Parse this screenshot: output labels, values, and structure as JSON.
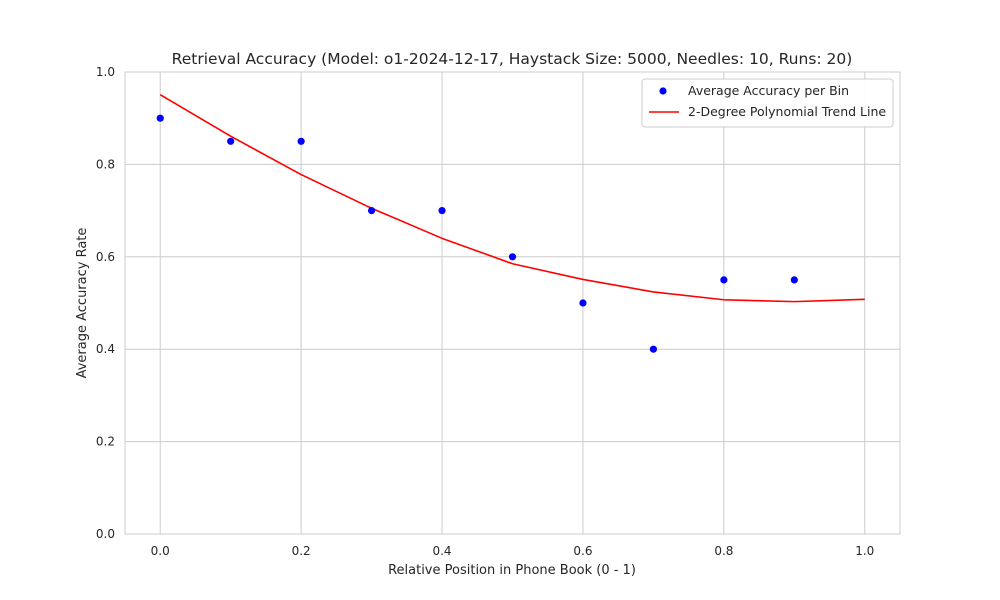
{
  "chart_data": {
    "type": "scatter",
    "title": "Retrieval Accuracy (Model: o1-2024-12-17, Haystack Size: 5000, Needles: 10, Runs: 20)",
    "xlabel": "Relative Position in Phone Book (0 - 1)",
    "ylabel": "Average Accuracy Rate",
    "xlim": [
      -0.05,
      1.05
    ],
    "ylim": [
      0.0,
      1.0
    ],
    "xticks": [
      "0.0",
      "0.2",
      "0.4",
      "0.6",
      "0.8",
      "1.0"
    ],
    "yticks": [
      "0.0",
      "0.2",
      "0.4",
      "0.6",
      "0.8",
      "1.0"
    ],
    "grid": true,
    "legend_position": "top-right",
    "series": [
      {
        "name": "Average Accuracy per Bin",
        "kind": "scatter",
        "color": "#0000ff",
        "x": [
          0.0,
          0.1,
          0.2,
          0.3,
          0.4,
          0.5,
          0.6,
          0.7,
          0.8,
          0.9
        ],
        "y": [
          0.9,
          0.85,
          0.85,
          0.7,
          0.7,
          0.6,
          0.5,
          0.4,
          0.55,
          0.55
        ]
      },
      {
        "name": "2-Degree Polynomial Trend Line",
        "kind": "line",
        "color": "#ff0000",
        "x": [
          0.0,
          0.1,
          0.2,
          0.3,
          0.4,
          0.5,
          0.6,
          0.7,
          0.8,
          0.9,
          1.0
        ],
        "y": [
          0.951,
          0.861,
          0.778,
          0.705,
          0.64,
          0.585,
          0.551,
          0.524,
          0.507,
          0.503,
          0.508
        ]
      }
    ]
  }
}
